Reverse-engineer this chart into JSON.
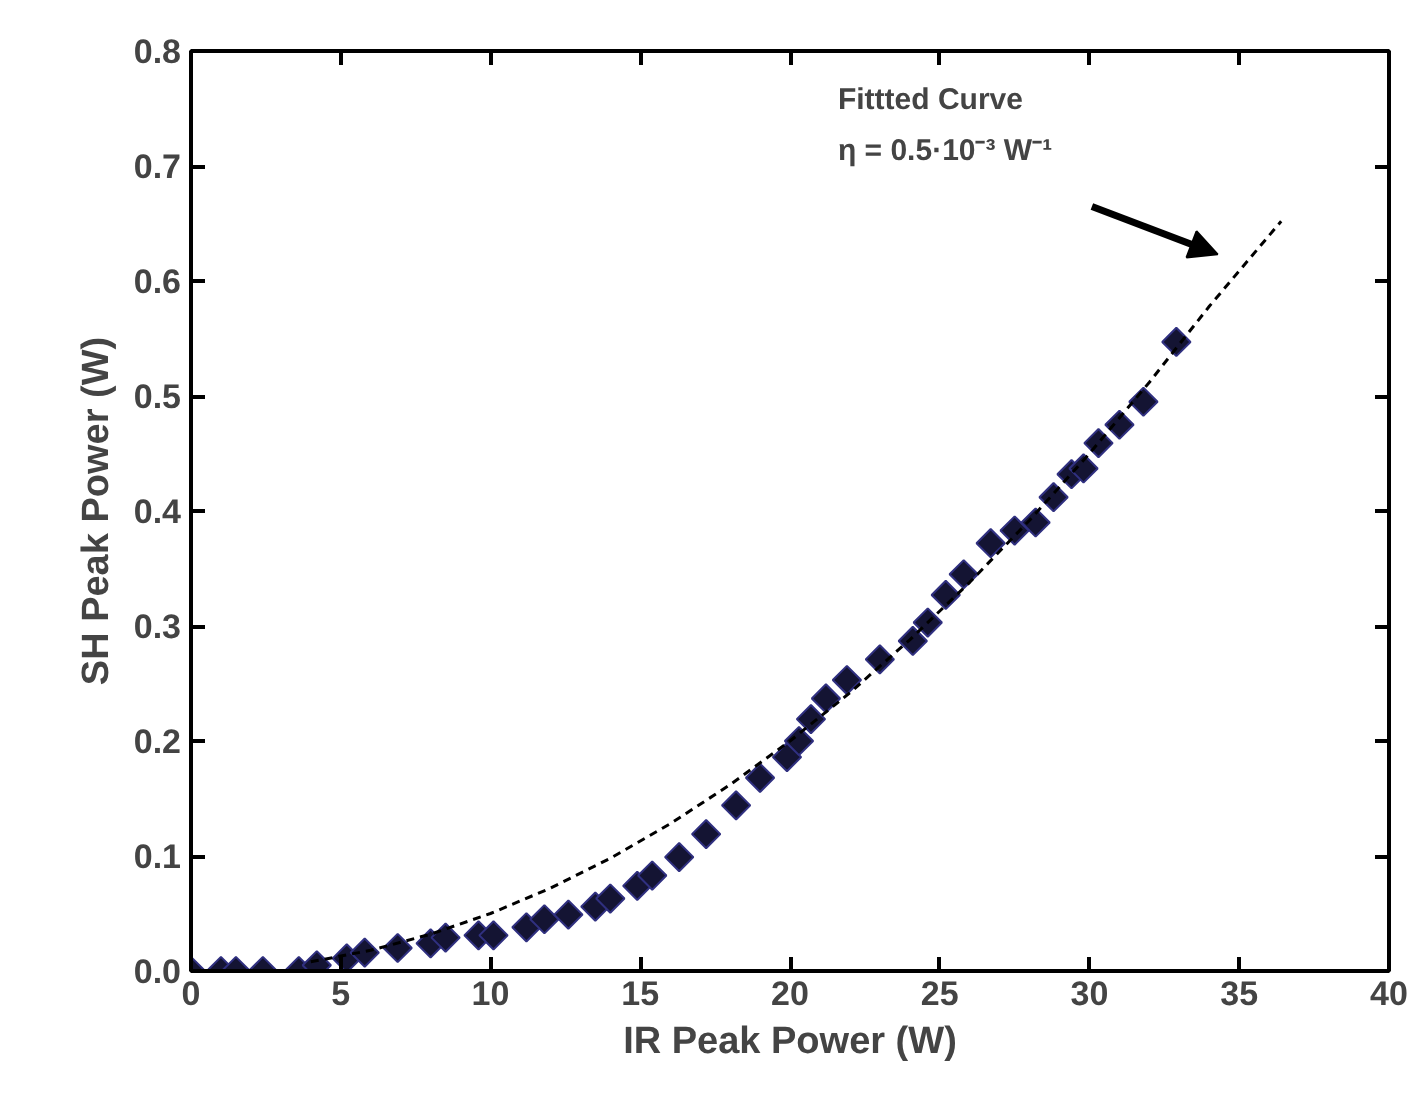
{
  "chart_data": {
    "type": "scatter",
    "xlabel": "IR Peak Power (W)",
    "ylabel": "SH Peak Power (W)",
    "xlim": [
      0,
      40
    ],
    "ylim": [
      0,
      0.8
    ],
    "xticks": [
      0,
      5,
      10,
      15,
      20,
      25,
      30,
      35,
      40
    ],
    "yticks": [
      {
        "value": 0,
        "label": "0.0"
      },
      0.1,
      0.2,
      0.3,
      0.4,
      0.5,
      0.6,
      0.7,
      0.8
    ],
    "grid": false,
    "series": [
      {
        "marker": "diamond",
        "color": "#141433",
        "x": [
          0,
          1.0,
          1.5,
          2.4,
          3.6,
          4.2,
          5.2,
          5.8,
          6.9,
          8.0,
          8.5,
          9.6,
          10.1,
          11.2,
          11.8,
          12.6,
          13.5,
          14.0,
          14.9,
          15.4,
          16.3,
          17.2,
          18.2,
          19.0,
          19.9,
          20.3,
          20.7,
          21.2,
          21.9,
          23.0,
          24.1,
          24.6,
          25.2,
          25.8,
          26.7,
          27.5,
          28.2,
          28.8,
          29.4,
          29.8,
          30.3,
          31.0,
          31.8,
          32.9
        ],
        "values": [
          0,
          0,
          0,
          0,
          0,
          0.005,
          0.011,
          0.016,
          0.02,
          0.024,
          0.029,
          0.031,
          0.031,
          0.038,
          0.045,
          0.049,
          0.056,
          0.063,
          0.074,
          0.083,
          0.099,
          0.119,
          0.144,
          0.168,
          0.186,
          0.2,
          0.219,
          0.237,
          0.253,
          0.271,
          0.287,
          0.303,
          0.327,
          0.345,
          0.372,
          0.383,
          0.39,
          0.412,
          0.432,
          0.437,
          0.459,
          0.475,
          0.495,
          0.547
        ]
      },
      {
        "type": "line",
        "line_style": "dashed",
        "color": "#000000",
        "x": [
          4,
          6,
          8,
          10,
          12,
          14,
          16,
          18,
          20,
          22,
          24,
          26,
          28,
          30,
          32,
          34,
          36.4
        ],
        "values": [
          0.008,
          0.018,
          0.032,
          0.05,
          0.072,
          0.098,
          0.128,
          0.162,
          0.2,
          0.242,
          0.288,
          0.338,
          0.392,
          0.45,
          0.512,
          0.578,
          0.652
        ]
      }
    ],
    "annotations": [
      "Fittted Curve\nη = 0.5·10⁻³ W⁻¹"
    ]
  }
}
